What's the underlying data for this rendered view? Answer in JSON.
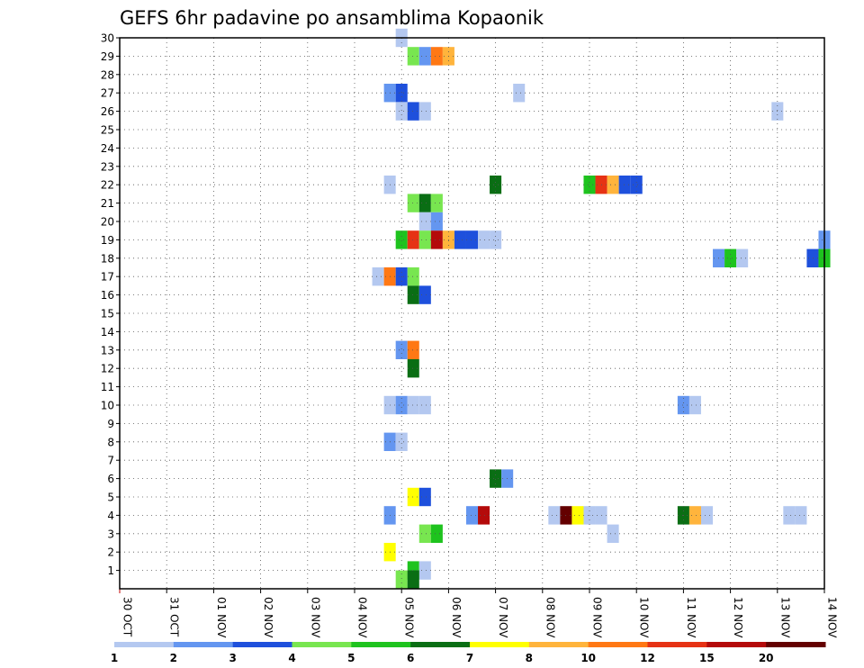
{
  "chart_data": {
    "type": "heatmap",
    "title": "GEFS 6hr padavine po ansamblima Kopaonik",
    "xlabel": "",
    "ylabel": "",
    "x_tick_labels": [
      "30 OCT",
      "31 OCT",
      "01 NOV",
      "02 NOV",
      "03 NOV",
      "04 NOV",
      "05 NOV",
      "06 NOV",
      "07 NOV",
      "08 NOV",
      "09 NOV",
      "10 NOV",
      "11 NOV",
      "12 NOV",
      "13 NOV",
      "14 NOV"
    ],
    "y_tick_labels": [
      "1",
      "2",
      "3",
      "4",
      "5",
      "6",
      "7",
      "8",
      "9",
      "10",
      "11",
      "12",
      "13",
      "14",
      "15",
      "16",
      "17",
      "18",
      "19",
      "20",
      "21",
      "22",
      "23",
      "24",
      "25",
      "26",
      "27",
      "28",
      "29",
      "30"
    ],
    "xlim": [
      0,
      15
    ],
    "ylim": [
      0,
      30
    ],
    "grid": true,
    "x_value_note": "days since 30 OCT 00Z, 6-hour bins",
    "levels": [
      {
        "label": "1",
        "color": "#b4c8f0"
      },
      {
        "label": "2",
        "color": "#6496f0"
      },
      {
        "label": "3",
        "color": "#1e50dc"
      },
      {
        "label": "4",
        "color": "#78e650"
      },
      {
        "label": "5",
        "color": "#1ec31e"
      },
      {
        "label": "6",
        "color": "#0a6e14"
      },
      {
        "label": "7",
        "color": "#ffff00"
      },
      {
        "label": "8",
        "color": "#ffb43c"
      },
      {
        "label": "10",
        "color": "#ff7814"
      },
      {
        "label": "12",
        "color": "#e63214"
      },
      {
        "label": "15",
        "color": "#b40a0a"
      },
      {
        "label": "20",
        "color": "#640000"
      }
    ],
    "cells": [
      {
        "member": 30,
        "t": 6.0,
        "level": 0
      },
      {
        "member": 29,
        "t": 6.25,
        "level": 3
      },
      {
        "member": 29,
        "t": 6.5,
        "level": 1
      },
      {
        "member": 29,
        "t": 6.75,
        "level": 8
      },
      {
        "member": 29,
        "t": 7.0,
        "level": 7
      },
      {
        "member": 27,
        "t": 5.75,
        "level": 1
      },
      {
        "member": 27,
        "t": 6.0,
        "level": 2
      },
      {
        "member": 27,
        "t": 8.5,
        "level": 0
      },
      {
        "member": 26,
        "t": 6.0,
        "level": 0
      },
      {
        "member": 26,
        "t": 6.25,
        "level": 2
      },
      {
        "member": 26,
        "t": 6.5,
        "level": 0
      },
      {
        "member": 26,
        "t": 14.0,
        "level": 0
      },
      {
        "member": 22,
        "t": 5.75,
        "level": 0
      },
      {
        "member": 22,
        "t": 8.0,
        "level": 5
      },
      {
        "member": 22,
        "t": 10.0,
        "level": 4
      },
      {
        "member": 22,
        "t": 10.25,
        "level": 9
      },
      {
        "member": 22,
        "t": 10.5,
        "level": 7
      },
      {
        "member": 22,
        "t": 10.75,
        "level": 2
      },
      {
        "member": 22,
        "t": 11.0,
        "level": 2
      },
      {
        "member": 21,
        "t": 6.25,
        "level": 3
      },
      {
        "member": 21,
        "t": 6.5,
        "level": 5
      },
      {
        "member": 21,
        "t": 6.75,
        "level": 3
      },
      {
        "member": 20,
        "t": 6.5,
        "level": 0
      },
      {
        "member": 20,
        "t": 6.75,
        "level": 1
      },
      {
        "member": 19,
        "t": 6.0,
        "level": 4
      },
      {
        "member": 19,
        "t": 6.25,
        "level": 9
      },
      {
        "member": 19,
        "t": 6.5,
        "level": 3
      },
      {
        "member": 19,
        "t": 6.75,
        "level": 10
      },
      {
        "member": 19,
        "t": 7.0,
        "level": 7
      },
      {
        "member": 19,
        "t": 7.25,
        "level": 2
      },
      {
        "member": 19,
        "t": 7.5,
        "level": 2
      },
      {
        "member": 19,
        "t": 7.75,
        "level": 0
      },
      {
        "member": 19,
        "t": 8.0,
        "level": 0
      },
      {
        "member": 19,
        "t": 15.0,
        "level": 1
      },
      {
        "member": 18,
        "t": 12.75,
        "level": 1
      },
      {
        "member": 18,
        "t": 13.0,
        "level": 4
      },
      {
        "member": 18,
        "t": 13.25,
        "level": 0
      },
      {
        "member": 18,
        "t": 14.75,
        "level": 2
      },
      {
        "member": 18,
        "t": 15.0,
        "level": 4
      },
      {
        "member": 17,
        "t": 5.5,
        "level": 0
      },
      {
        "member": 17,
        "t": 5.75,
        "level": 8
      },
      {
        "member": 17,
        "t": 6.0,
        "level": 2
      },
      {
        "member": 17,
        "t": 6.25,
        "level": 3
      },
      {
        "member": 16,
        "t": 6.25,
        "level": 5
      },
      {
        "member": 16,
        "t": 6.5,
        "level": 2
      },
      {
        "member": 13,
        "t": 6.0,
        "level": 1
      },
      {
        "member": 13,
        "t": 6.25,
        "level": 8
      },
      {
        "member": 12,
        "t": 6.25,
        "level": 5
      },
      {
        "member": 10,
        "t": 5.75,
        "level": 0
      },
      {
        "member": 10,
        "t": 6.0,
        "level": 1
      },
      {
        "member": 10,
        "t": 6.25,
        "level": 0
      },
      {
        "member": 10,
        "t": 6.5,
        "level": 0
      },
      {
        "member": 10,
        "t": 12.0,
        "level": 1
      },
      {
        "member": 10,
        "t": 12.25,
        "level": 0
      },
      {
        "member": 8,
        "t": 5.75,
        "level": 1
      },
      {
        "member": 8,
        "t": 6.0,
        "level": 0
      },
      {
        "member": 6,
        "t": 8.0,
        "level": 5
      },
      {
        "member": 6,
        "t": 8.25,
        "level": 1
      },
      {
        "member": 5,
        "t": 6.25,
        "level": 6
      },
      {
        "member": 5,
        "t": 6.5,
        "level": 2
      },
      {
        "member": 4,
        "t": 5.75,
        "level": 1
      },
      {
        "member": 4,
        "t": 7.5,
        "level": 1
      },
      {
        "member": 4,
        "t": 7.75,
        "level": 10
      },
      {
        "member": 4,
        "t": 9.25,
        "level": 0
      },
      {
        "member": 4,
        "t": 9.5,
        "level": 11
      },
      {
        "member": 4,
        "t": 9.75,
        "level": 6
      },
      {
        "member": 4,
        "t": 10.0,
        "level": 0
      },
      {
        "member": 4,
        "t": 10.25,
        "level": 0
      },
      {
        "member": 4,
        "t": 12.0,
        "level": 5
      },
      {
        "member": 4,
        "t": 12.25,
        "level": 7
      },
      {
        "member": 4,
        "t": 12.5,
        "level": 0
      },
      {
        "member": 4,
        "t": 14.25,
        "level": 0
      },
      {
        "member": 4,
        "t": 14.5,
        "level": 0
      },
      {
        "member": 3,
        "t": 6.5,
        "level": 3
      },
      {
        "member": 3,
        "t": 6.75,
        "level": 4
      },
      {
        "member": 3,
        "t": 10.5,
        "level": 0
      },
      {
        "member": 2,
        "t": 5.75,
        "level": 6
      },
      {
        "member": 1,
        "t": 6.25,
        "level": 4
      },
      {
        "member": 1,
        "t": 6.5,
        "level": 0
      },
      {
        "member": 0.5,
        "t": 6.0,
        "level": 3
      },
      {
        "member": 0.5,
        "t": 6.25,
        "level": 5
      }
    ]
  }
}
